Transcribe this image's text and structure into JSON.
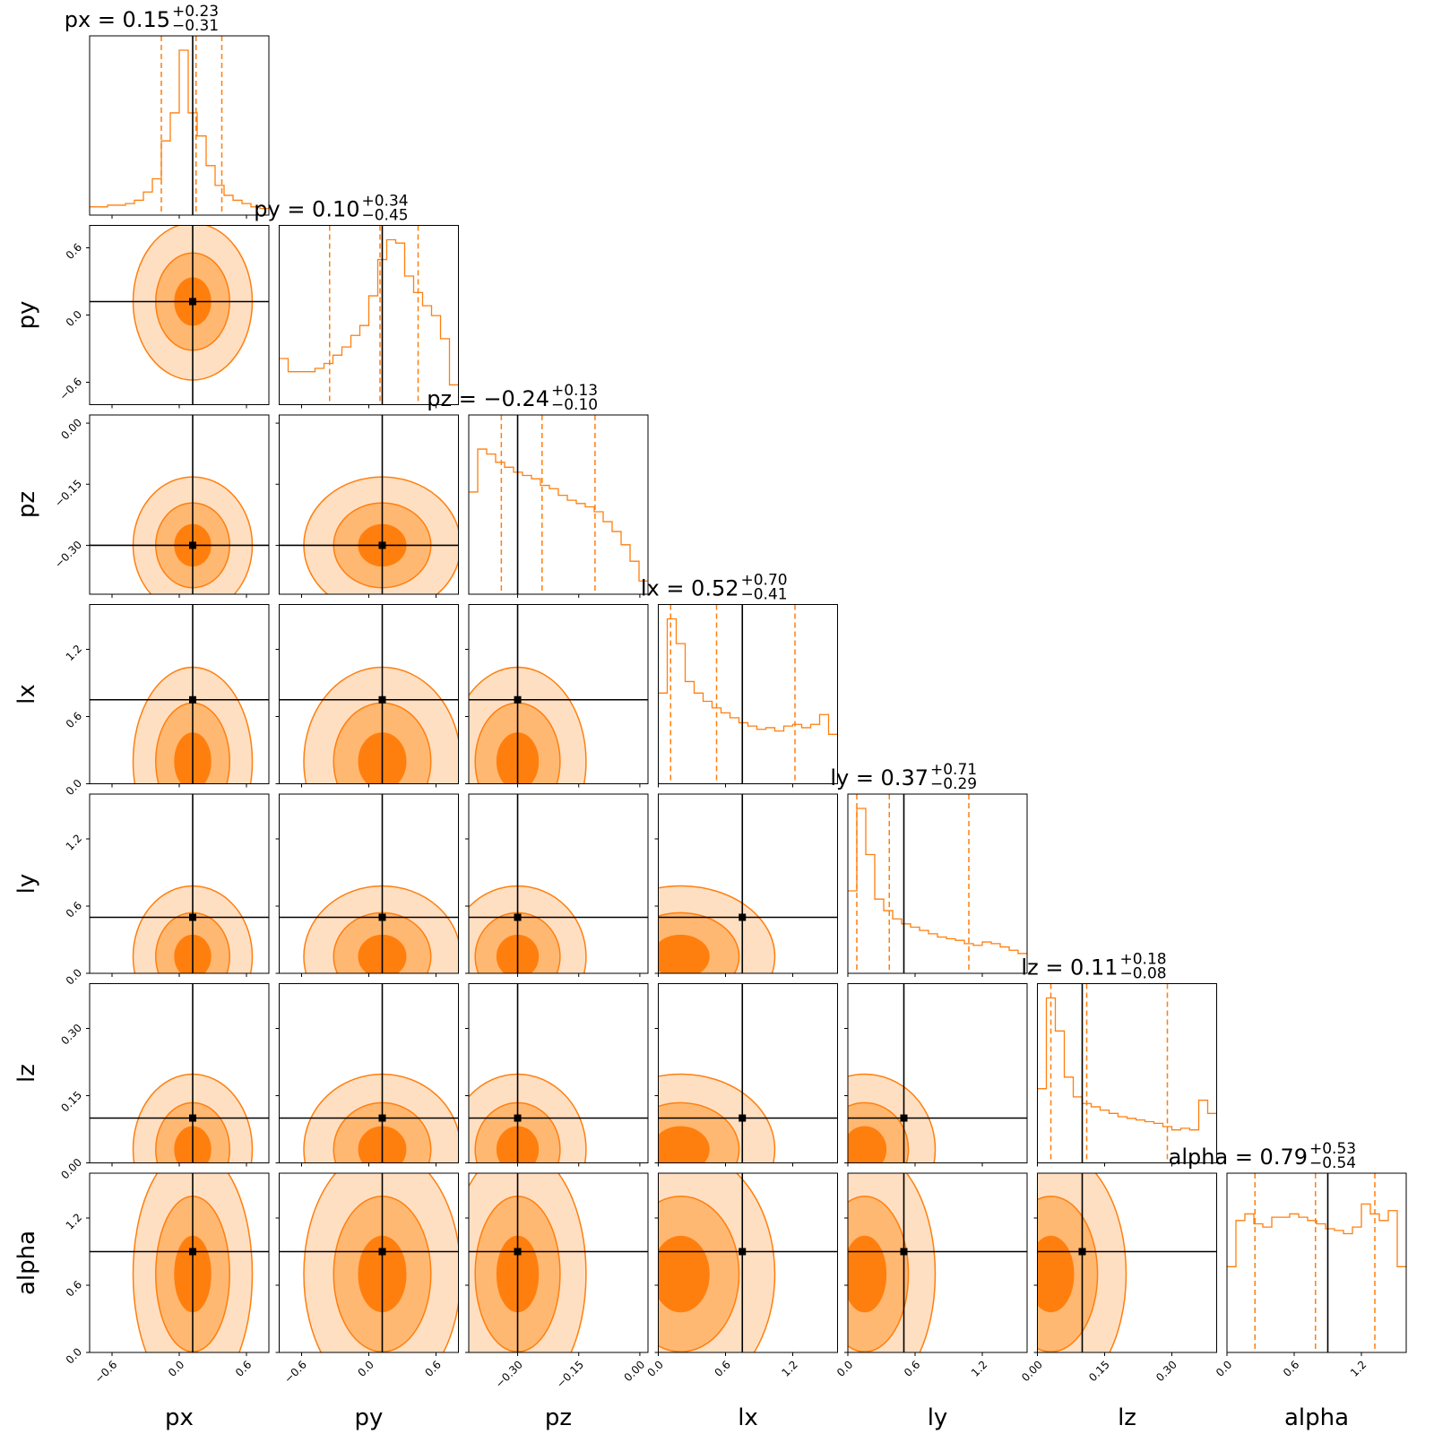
{
  "chart_data": {
    "type": "corner",
    "parameters": [
      "px",
      "py",
      "pz",
      "lx",
      "ly",
      "lz",
      "alpha"
    ],
    "axis_labels": [
      "px",
      "py",
      "pz",
      "lx",
      "ly",
      "lz",
      "alpha"
    ],
    "titles": [
      {
        "name": "px",
        "value": "0.15",
        "plus": "+0.23",
        "minus": "−0.31"
      },
      {
        "name": "py",
        "value": "0.10",
        "plus": "+0.34",
        "minus": "−0.45"
      },
      {
        "name": "pz",
        "value": "−0.24",
        "plus": "+0.13",
        "minus": "−0.10"
      },
      {
        "name": "lx",
        "value": "0.52",
        "plus": "+0.70",
        "minus": "−0.41"
      },
      {
        "name": "ly",
        "value": "0.37",
        "plus": "+0.71",
        "minus": "−0.29"
      },
      {
        "name": "lz",
        "value": "0.11",
        "plus": "+0.18",
        "minus": "−0.08"
      },
      {
        "name": "alpha",
        "value": "0.79",
        "plus": "+0.53",
        "minus": "−0.54"
      }
    ],
    "ranges": [
      [
        -0.8,
        0.8
      ],
      [
        -0.8,
        0.8
      ],
      [
        -0.42,
        0.02
      ],
      [
        0.0,
        1.6
      ],
      [
        0.0,
        1.6
      ],
      [
        0.0,
        0.4
      ],
      [
        0.0,
        1.6
      ]
    ],
    "ticks": [
      {
        "values": [
          -0.6,
          0.0,
          0.6
        ],
        "labels": [
          "−0.6",
          "0.0",
          "0.6"
        ]
      },
      {
        "values": [
          -0.6,
          0.0,
          0.6
        ],
        "labels": [
          "−0.6",
          "0.0",
          "0.6"
        ]
      },
      {
        "values": [
          -0.3,
          -0.15,
          0.0
        ],
        "labels": [
          "−0.30",
          "−0.15",
          "0.00"
        ]
      },
      {
        "values": [
          0.0,
          0.6,
          1.2
        ],
        "labels": [
          "0.0",
          "0.6",
          "1.2"
        ]
      },
      {
        "values": [
          0.0,
          0.6,
          1.2
        ],
        "labels": [
          "0.0",
          "0.6",
          "1.2"
        ]
      },
      {
        "values": [
          0.0,
          0.15,
          0.3
        ],
        "labels": [
          "0.00",
          "0.15",
          "0.30"
        ]
      },
      {
        "values": [
          0.0,
          0.6,
          1.2
        ],
        "labels": [
          "0.0",
          "0.6",
          "1.2"
        ]
      }
    ],
    "truths": [
      0.12,
      0.12,
      -0.3,
      0.75,
      0.5,
      0.1,
      0.9
    ],
    "quantiles": [
      [
        -0.16,
        0.15,
        0.38
      ],
      [
        -0.35,
        0.1,
        0.44
      ],
      [
        -0.34,
        -0.24,
        -0.11
      ],
      [
        0.11,
        0.52,
        1.22
      ],
      [
        0.08,
        0.37,
        1.08
      ],
      [
        0.03,
        0.11,
        0.29
      ],
      [
        0.25,
        0.79,
        1.32
      ]
    ],
    "histograms": [
      [
        0.05,
        0.05,
        0.06,
        0.06,
        0.07,
        0.09,
        0.14,
        0.22,
        0.45,
        0.62,
        1.0,
        0.62,
        0.48,
        0.3,
        0.18,
        0.12,
        0.09,
        0.07,
        0.05,
        0.04
      ],
      [
        0.28,
        0.2,
        0.2,
        0.2,
        0.22,
        0.25,
        0.3,
        0.35,
        0.42,
        0.48,
        0.66,
        0.88,
        1.0,
        0.98,
        0.78,
        0.68,
        0.6,
        0.54,
        0.4,
        0.12
      ],
      [
        0.62,
        0.88,
        0.85,
        0.8,
        0.77,
        0.74,
        0.72,
        0.7,
        0.66,
        0.64,
        0.6,
        0.57,
        0.55,
        0.53,
        0.5,
        0.44,
        0.38,
        0.3,
        0.2,
        0.08
      ],
      [
        0.55,
        1.0,
        0.85,
        0.62,
        0.55,
        0.5,
        0.46,
        0.43,
        0.4,
        0.37,
        0.35,
        0.33,
        0.34,
        0.32,
        0.35,
        0.36,
        0.34,
        0.36,
        0.42,
        0.3
      ],
      [
        0.5,
        1.0,
        0.72,
        0.45,
        0.38,
        0.33,
        0.3,
        0.28,
        0.26,
        0.24,
        0.22,
        0.21,
        0.2,
        0.18,
        0.17,
        0.19,
        0.18,
        0.16,
        0.14,
        0.12
      ],
      [
        0.45,
        1.0,
        0.8,
        0.52,
        0.4,
        0.36,
        0.34,
        0.32,
        0.3,
        0.28,
        0.27,
        0.26,
        0.25,
        0.24,
        0.22,
        0.2,
        0.21,
        0.2,
        0.38,
        0.3
      ],
      [
        0.52,
        0.8,
        0.84,
        0.78,
        0.76,
        0.82,
        0.82,
        0.84,
        0.82,
        0.8,
        0.78,
        0.75,
        0.74,
        0.72,
        0.76,
        0.9,
        0.84,
        0.8,
        0.86,
        0.52
      ]
    ],
    "density_levels": [
      "0.39",
      "0.86",
      "0.99"
    ],
    "density_center": [
      0.12,
      0.12,
      -0.3,
      0.2,
      0.15,
      0.03,
      0.7
    ],
    "density_spread": [
      0.38,
      0.5,
      0.12,
      0.6,
      0.45,
      0.12,
      0.8
    ],
    "colors": {
      "line": "#ff7f0e",
      "fill_inner": "#ff7f0e",
      "fill_mid": "#ffb872",
      "fill_outer": "#ffdfc2",
      "truth": "#000000",
      "frame": "#000000"
    }
  }
}
